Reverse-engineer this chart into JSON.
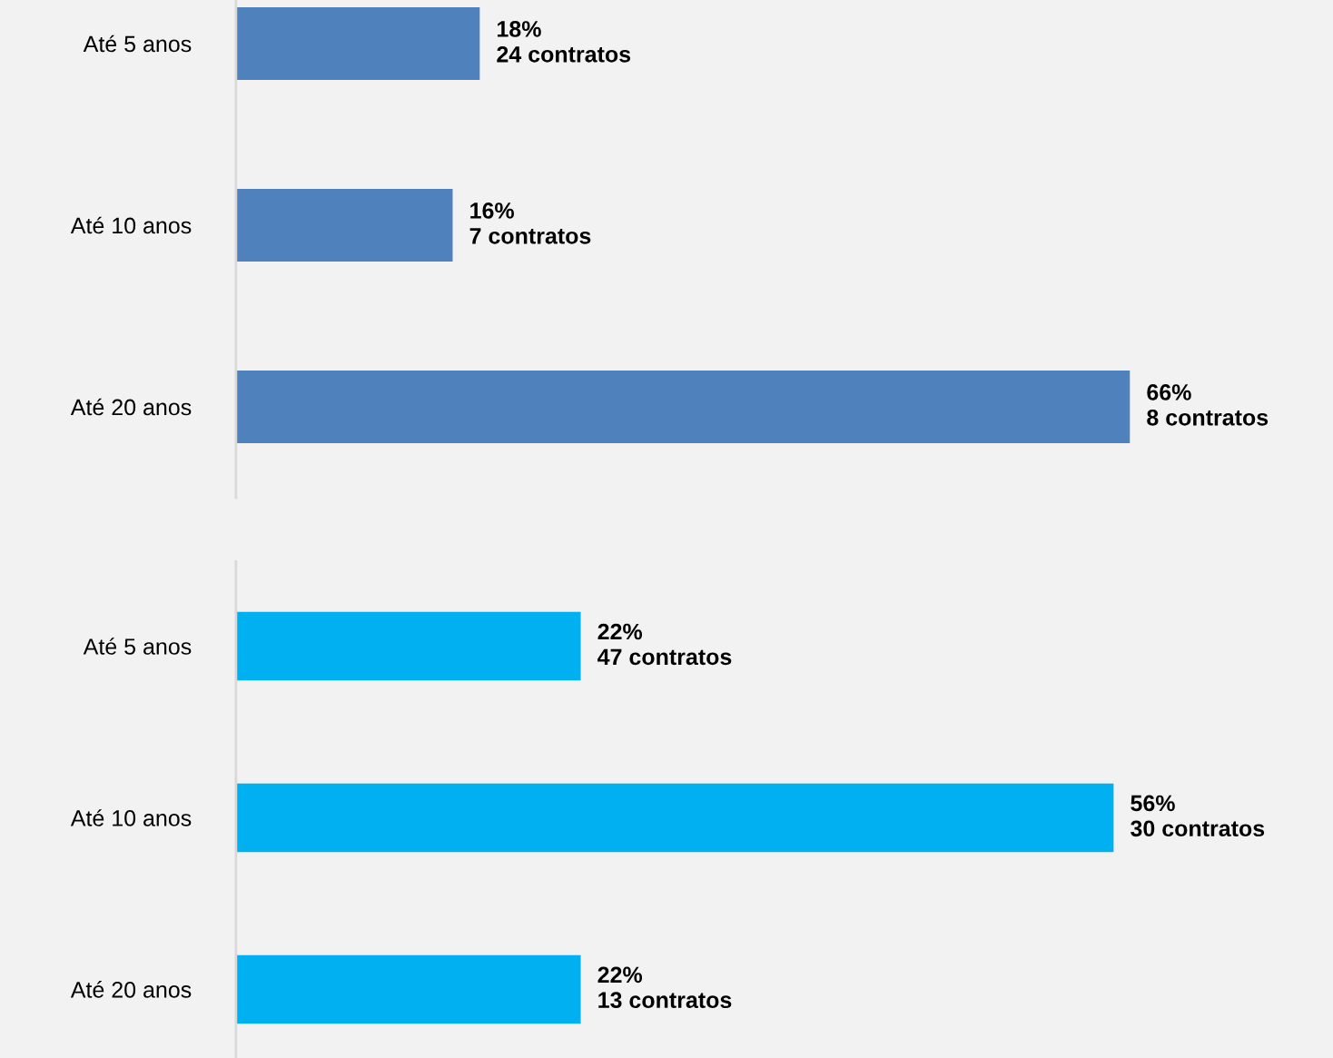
{
  "chart_data": [
    {
      "type": "bar",
      "orientation": "horizontal",
      "categories": [
        "Até 5 anos",
        "Até 10 anos",
        "Até 20 anos"
      ],
      "xlim": [
        0,
        81
      ],
      "tick_labels": "y",
      "grid": false,
      "legend": false,
      "series": [
        {
          "color": "#4f81bd",
          "values": [
            18,
            16,
            66
          ],
          "value_labels": [
            "18%\n24 contratos",
            "16%\n7 contratos",
            "66%\n8 contratos"
          ]
        }
      ]
    },
    {
      "type": "bar",
      "orientation": "horizontal",
      "categories": [
        "Até 5 anos",
        "Até 10 anos",
        "Até 20 anos"
      ],
      "xlim": [
        0,
        70
      ],
      "tick_labels": "y",
      "grid": false,
      "legend": false,
      "series": [
        {
          "color": "#00b0f0",
          "values": [
            22,
            56,
            22
          ],
          "value_labels": [
            "22%\n47 contratos",
            "56%\n30 contratos",
            "22%\n13 contratos"
          ]
        }
      ]
    }
  ]
}
